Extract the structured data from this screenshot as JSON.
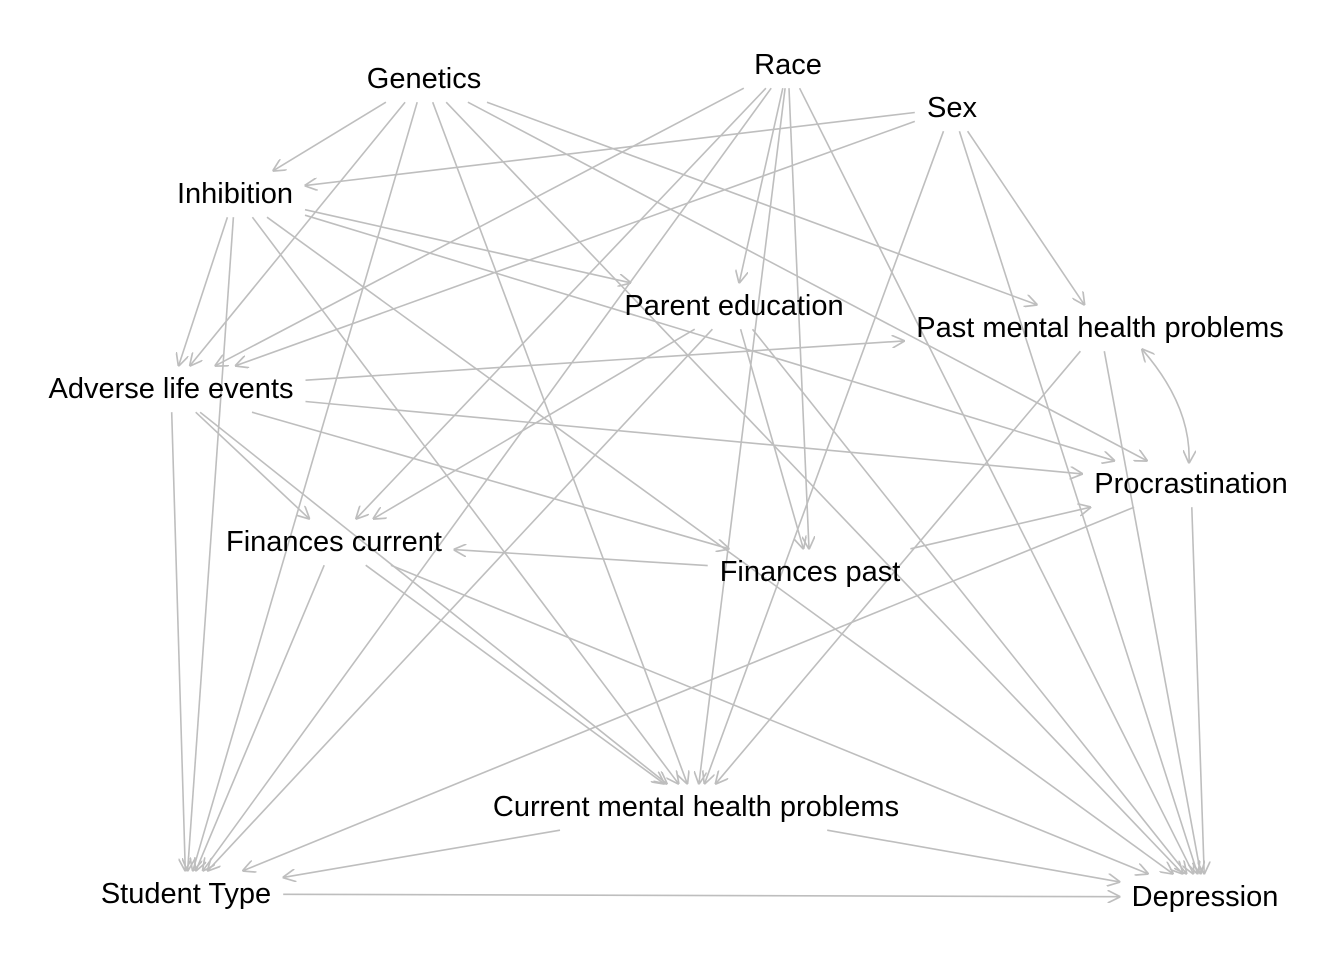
{
  "diagram": {
    "type": "directed-acyclic-graph",
    "edge_color": "#bebebe",
    "text_color": "#000000",
    "background": "#ffffff",
    "nodes": [
      {
        "id": "genetics",
        "label": "Genetics"
      },
      {
        "id": "race",
        "label": "Race"
      },
      {
        "id": "sex",
        "label": "Sex"
      },
      {
        "id": "inhibition",
        "label": "Inhibition"
      },
      {
        "id": "parent_education",
        "label": "Parent education"
      },
      {
        "id": "past_mh",
        "label": "Past mental health problems"
      },
      {
        "id": "adverse",
        "label": "Adverse life events"
      },
      {
        "id": "procrastination",
        "label": "Procrastination"
      },
      {
        "id": "fin_current",
        "label": "Finances current"
      },
      {
        "id": "fin_past",
        "label": "Finances past"
      },
      {
        "id": "current_mh",
        "label": "Current mental health problems"
      },
      {
        "id": "student_type",
        "label": "Student Type"
      },
      {
        "id": "depression",
        "label": "Depression"
      }
    ],
    "edges": [
      {
        "from": "genetics",
        "to": "inhibition"
      },
      {
        "from": "genetics",
        "to": "adverse"
      },
      {
        "from": "genetics",
        "to": "student_type"
      },
      {
        "from": "genetics",
        "to": "current_mh"
      },
      {
        "from": "genetics",
        "to": "depression"
      },
      {
        "from": "genetics",
        "to": "past_mh"
      },
      {
        "from": "genetics",
        "to": "procrastination"
      },
      {
        "from": "race",
        "to": "parent_education"
      },
      {
        "from": "race",
        "to": "fin_past"
      },
      {
        "from": "race",
        "to": "adverse"
      },
      {
        "from": "race",
        "to": "fin_current"
      },
      {
        "from": "race",
        "to": "student_type"
      },
      {
        "from": "race",
        "to": "depression"
      },
      {
        "from": "race",
        "to": "current_mh"
      },
      {
        "from": "sex",
        "to": "inhibition"
      },
      {
        "from": "sex",
        "to": "past_mh"
      },
      {
        "from": "sex",
        "to": "adverse"
      },
      {
        "from": "sex",
        "to": "current_mh"
      },
      {
        "from": "sex",
        "to": "depression"
      },
      {
        "from": "inhibition",
        "to": "adverse"
      },
      {
        "from": "inhibition",
        "to": "student_type"
      },
      {
        "from": "inhibition",
        "to": "parent_education"
      },
      {
        "from": "inhibition",
        "to": "procrastination"
      },
      {
        "from": "inhibition",
        "to": "current_mh"
      },
      {
        "from": "inhibition",
        "to": "depression"
      },
      {
        "from": "parent_education",
        "to": "fin_past"
      },
      {
        "from": "parent_education",
        "to": "fin_current"
      },
      {
        "from": "parent_education",
        "to": "student_type"
      },
      {
        "from": "parent_education",
        "to": "depression"
      },
      {
        "from": "adverse",
        "to": "past_mh"
      },
      {
        "from": "adverse",
        "to": "procrastination"
      },
      {
        "from": "adverse",
        "to": "fin_past"
      },
      {
        "from": "adverse",
        "to": "fin_current"
      },
      {
        "from": "adverse",
        "to": "student_type"
      },
      {
        "from": "adverse",
        "to": "current_mh"
      },
      {
        "from": "past_mh",
        "to": "procrastination",
        "bidirectional": true
      },
      {
        "from": "past_mh",
        "to": "current_mh"
      },
      {
        "from": "past_mh",
        "to": "depression"
      },
      {
        "from": "fin_past",
        "to": "fin_current"
      },
      {
        "from": "fin_past",
        "to": "procrastination"
      },
      {
        "from": "procrastination",
        "to": "student_type"
      },
      {
        "from": "procrastination",
        "to": "depression"
      },
      {
        "from": "fin_current",
        "to": "student_type"
      },
      {
        "from": "fin_current",
        "to": "current_mh"
      },
      {
        "from": "fin_current",
        "to": "depression"
      },
      {
        "from": "current_mh",
        "to": "student_type"
      },
      {
        "from": "current_mh",
        "to": "depression"
      },
      {
        "from": "student_type",
        "to": "depression"
      }
    ]
  }
}
